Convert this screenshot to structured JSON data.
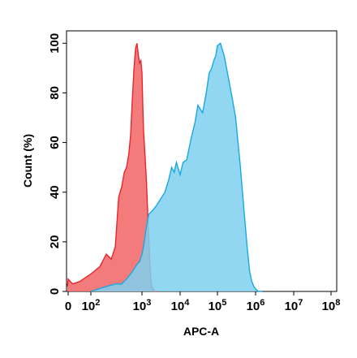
{
  "chart_data": {
    "type": "area",
    "xlabel": "APC-A",
    "ylabel": "Count (%)",
    "x_scale": "biexponential",
    "xlim": [
      0,
      100000000
    ],
    "ylim": [
      0,
      105
    ],
    "x_ticks": [
      {
        "value": 0,
        "base": "0",
        "exp": ""
      },
      {
        "value": 100,
        "base": "10",
        "exp": "2"
      },
      {
        "value": 1000,
        "base": "10",
        "exp": "3"
      },
      {
        "value": 10000,
        "base": "10",
        "exp": "4"
      },
      {
        "value": 100000,
        "base": "10",
        "exp": "5"
      },
      {
        "value": 1000000,
        "base": "10",
        "exp": "6"
      },
      {
        "value": 10000000,
        "base": "10",
        "exp": "7"
      },
      {
        "value": 100000000,
        "base": "10",
        "exp": "8"
      }
    ],
    "y_ticks": [
      {
        "value": 0,
        "label": "0"
      },
      {
        "value": 20,
        "label": "20"
      },
      {
        "value": 40,
        "label": "40"
      },
      {
        "value": 60,
        "label": "60"
      },
      {
        "value": 80,
        "label": "80"
      },
      {
        "value": 100,
        "label": "100"
      }
    ],
    "grid": false,
    "series": [
      {
        "color_fill": "#f26d6d",
        "color_line": "#e8262b",
        "x": [
          -20,
          0,
          20,
          50,
          100,
          150,
          200,
          250,
          300,
          350,
          400,
          450,
          500,
          550,
          600,
          650,
          700,
          750,
          800,
          850,
          900,
          950,
          1000,
          1050,
          1100,
          1200,
          1300,
          1400,
          1500,
          1600,
          1700,
          1800,
          2000,
          2200,
          2500
        ],
        "y": [
          2,
          5,
          3,
          4,
          7,
          10,
          15,
          13,
          18,
          38,
          42,
          48,
          50,
          55,
          63,
          78,
          90,
          98,
          100,
          95,
          92,
          93,
          88,
          75,
          65,
          55,
          45,
          33,
          22,
          12,
          6,
          2,
          1,
          0,
          0
        ]
      },
      {
        "color_fill": "#7ed0f0",
        "color_line": "#19a8e0",
        "x": [
          100,
          200,
          300,
          400,
          500,
          600,
          700,
          800,
          900,
          1000,
          1100,
          1200,
          1300,
          1500,
          2000,
          2500,
          3000,
          4000,
          5000,
          6000,
          7000,
          8000,
          10000,
          12000,
          15000,
          20000,
          25000,
          30000,
          40000,
          50000,
          60000,
          70000,
          80000,
          90000,
          100000,
          120000,
          150000,
          200000,
          250000,
          300000,
          400000,
          500000,
          600000,
          700000,
          800000,
          900000,
          1000000,
          1200000,
          1500000
        ],
        "y": [
          0,
          2,
          3,
          3,
          5,
          7,
          9,
          11,
          12,
          15,
          18,
          22,
          26,
          31,
          33,
          35,
          37,
          40,
          45,
          50,
          48,
          52,
          47,
          52,
          53,
          62,
          68,
          75,
          72,
          80,
          88,
          90,
          93,
          95,
          99,
          100,
          95,
          85,
          77,
          70,
          50,
          32,
          18,
          8,
          4,
          2,
          1,
          0,
          0
        ]
      }
    ]
  }
}
